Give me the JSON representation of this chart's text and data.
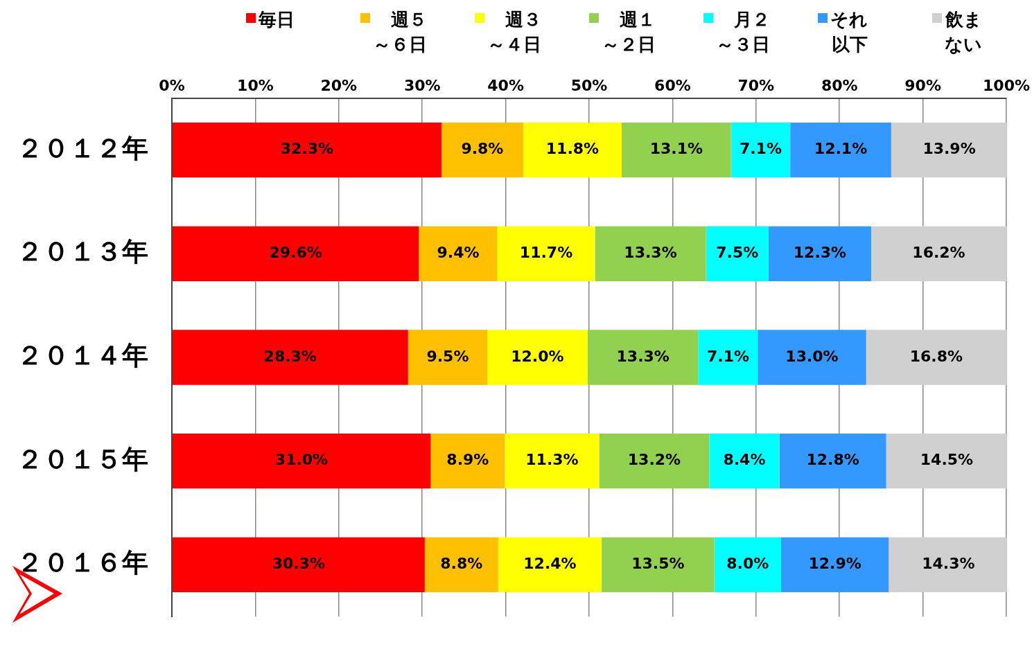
{
  "chart_data": {
    "type": "bar",
    "orientation": "horizontal",
    "stacked": true,
    "categories": [
      "２０１２年",
      "２０１３年",
      "２０１４年",
      "２０１５年",
      "２０１６年"
    ],
    "series": [
      {
        "name": "毎日",
        "color": "#ff0000",
        "values": [
          32.3,
          29.6,
          28.3,
          31.0,
          30.3
        ],
        "value_labels": [
          "32.3%",
          "29.6%",
          "28.3%",
          "31.0%",
          "30.3%"
        ]
      },
      {
        "name": "週５～６日",
        "color": "#ffc000",
        "values": [
          9.8,
          9.4,
          9.5,
          8.9,
          8.8
        ],
        "value_labels": [
          "9.8%",
          "9.4%",
          "9.5%",
          "8.9%",
          "8.8%"
        ]
      },
      {
        "name": "週３～４日",
        "color": "#ffff00",
        "values": [
          11.8,
          11.7,
          12.0,
          11.3,
          12.4
        ],
        "value_labels": [
          "11.8%",
          "11.7%",
          "12.0%",
          "11.3%",
          "12.4%"
        ]
      },
      {
        "name": "週１～２日",
        "color": "#92d050",
        "values": [
          13.1,
          13.3,
          13.3,
          13.2,
          13.5
        ],
        "value_labels": [
          "13.1%",
          "13.3%",
          "13.3%",
          "13.2%",
          "13.5%"
        ]
      },
      {
        "name": "月２～３日",
        "color": "#00ffff",
        "values": [
          7.1,
          7.5,
          7.1,
          8.4,
          8.0
        ],
        "value_labels": [
          "7.1%",
          "7.5%",
          "7.1%",
          "8.4%",
          "8.0%"
        ]
      },
      {
        "name": "それ以下",
        "color": "#3399ff",
        "values": [
          12.1,
          12.3,
          13.0,
          12.8,
          12.9
        ],
        "value_labels": [
          "12.1%",
          "12.3%",
          "13.0%",
          "12.8%",
          "12.9%"
        ]
      },
      {
        "name": "飲まない",
        "color": "#d0d0d0",
        "values": [
          13.9,
          16.2,
          16.8,
          14.5,
          14.3
        ],
        "value_labels": [
          "13.9%",
          "16.2%",
          "16.8%",
          "14.5%",
          "14.3%"
        ]
      }
    ],
    "xlim": [
      0,
      100
    ],
    "xticks": [
      {
        "value": 0,
        "label": "0%"
      },
      {
        "value": 10,
        "label": "10%"
      },
      {
        "value": 20,
        "label": "20%"
      },
      {
        "value": 30,
        "label": "30%"
      },
      {
        "value": 40,
        "label": "40%"
      },
      {
        "value": 50,
        "label": "50%"
      },
      {
        "value": 60,
        "label": "60%"
      },
      {
        "value": 70,
        "label": "70%"
      },
      {
        "value": 80,
        "label": "80%"
      },
      {
        "value": 90,
        "label": "90%"
      },
      {
        "value": 100,
        "label": "100%"
      }
    ],
    "grid": "x",
    "legend": "top"
  }
}
